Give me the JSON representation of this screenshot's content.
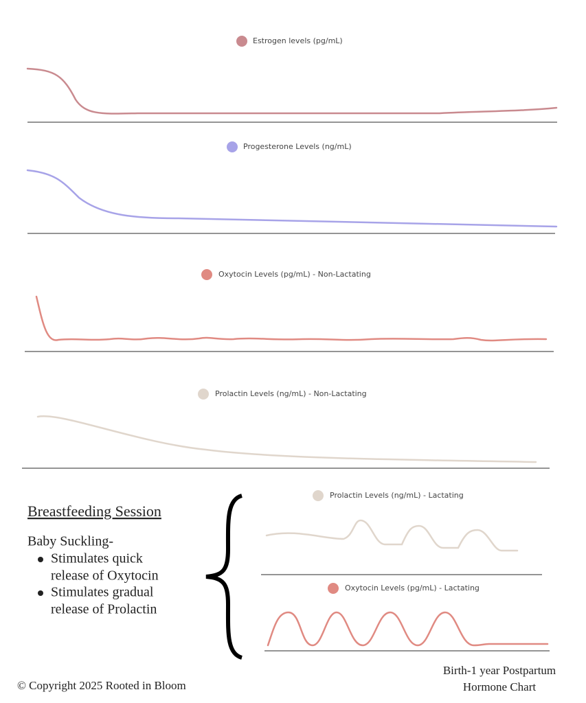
{
  "panels": [
    {
      "label": "Estrogen levels (pg/mL)"
    },
    {
      "label": "Progesterone Levels (ng/mL)"
    },
    {
      "label": "Oxytocin Levels (pg/mL) - Non-Lactating"
    },
    {
      "label": "Prolactin Levels (ng/mL) - Non-Lactating"
    },
    {
      "label": "Prolactin Levels (ng/mL) - Lactating"
    },
    {
      "label": "Oxytocin Levels (pg/mL) - Lactating"
    }
  ],
  "session": {
    "title": "Breastfeeding Session",
    "intro": "Baby Suckling-",
    "bullets": [
      [
        "Stimulates quick",
        "release of Oxytocin"
      ],
      [
        "Stimulates gradual",
        "release of Prolactin"
      ]
    ]
  },
  "footer": {
    "copyright": "© Copyright 2025 Rooted in Bloom",
    "caption": [
      "Birth-1 year Postpartum",
      "Hormone Chart"
    ]
  }
}
